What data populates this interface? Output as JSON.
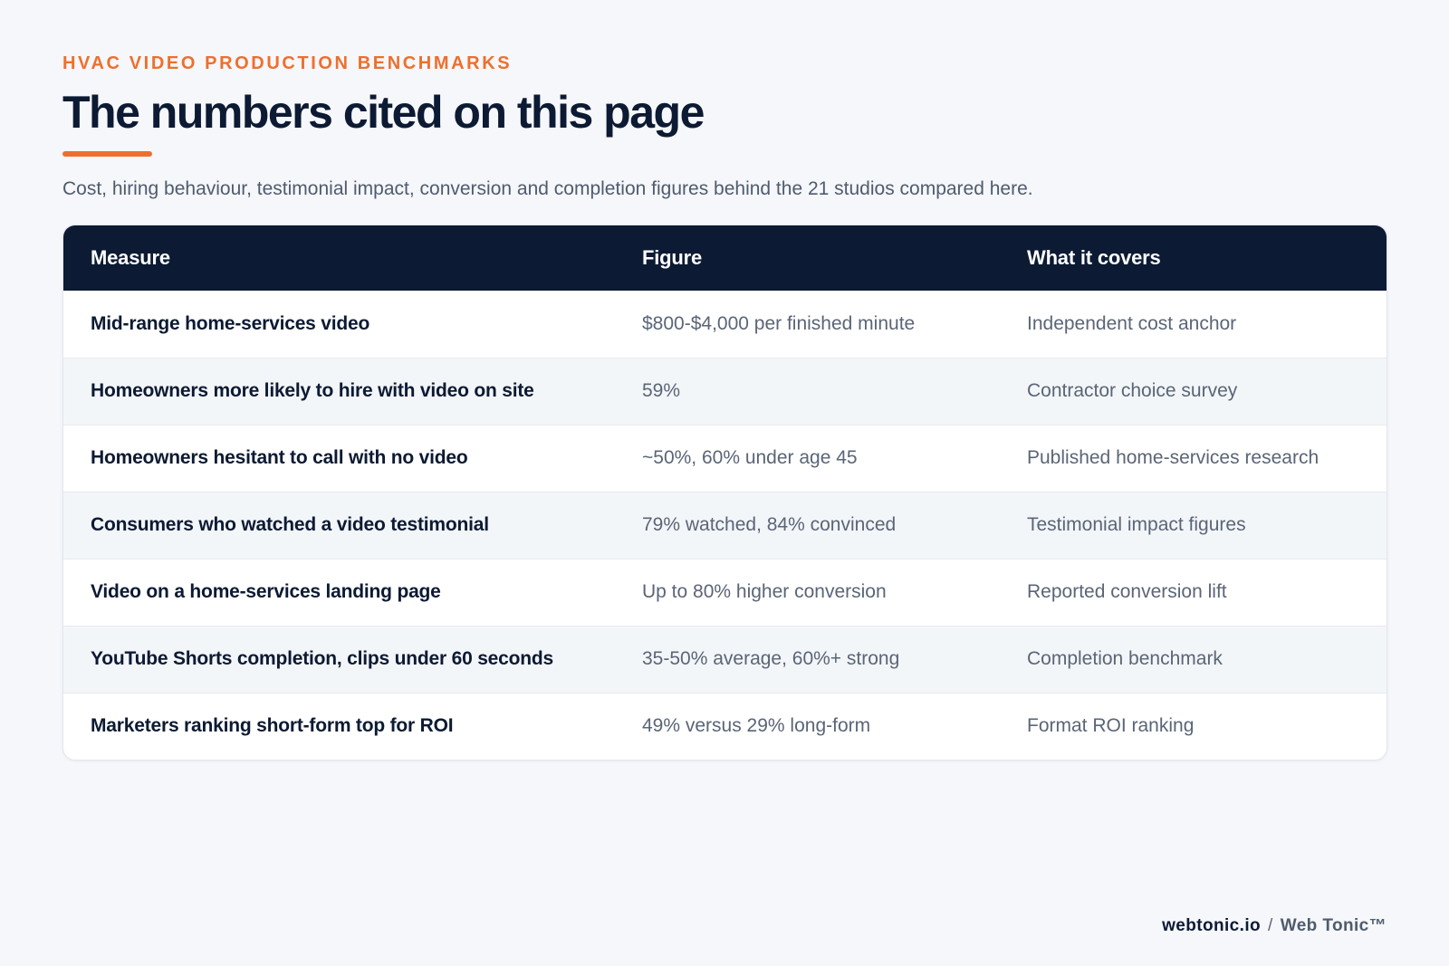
{
  "header": {
    "eyebrow": "HVAC VIDEO PRODUCTION BENCHMARKS",
    "title": "The numbers cited on this page",
    "subtitle": "Cost, hiring behaviour, testimonial impact, conversion and completion figures behind the 21 studios compared here."
  },
  "table": {
    "columns": [
      "Measure",
      "Figure",
      "What it covers"
    ],
    "rows": [
      {
        "measure": "Mid-range home-services video",
        "figure": "$800-$4,000 per finished minute",
        "covers": "Independent cost anchor"
      },
      {
        "measure": "Homeowners more likely to hire with video on site",
        "figure": "59%",
        "covers": "Contractor choice survey"
      },
      {
        "measure": "Homeowners hesitant to call with no video",
        "figure": "~50%, 60% under age 45",
        "covers": "Published home-services research"
      },
      {
        "measure": "Consumers who watched a video testimonial",
        "figure": "79% watched, 84% convinced",
        "covers": "Testimonial impact figures"
      },
      {
        "measure": "Video on a home-services landing page",
        "figure": "Up to 80% higher conversion",
        "covers": "Reported conversion lift"
      },
      {
        "measure": "YouTube Shorts completion, clips under 60 seconds",
        "figure": "35-50% average, 60%+ strong",
        "covers": "Completion benchmark"
      },
      {
        "measure": "Marketers ranking short-form top for ROI",
        "figure": "49% versus 29% long-form",
        "covers": "Format ROI ranking"
      }
    ]
  },
  "footer": {
    "site": "webtonic.io",
    "separator": "/",
    "brand": "Web Tonic™"
  },
  "colors": {
    "accent": "#ee6f2d",
    "navy": "#0c1a33",
    "muted_text": "#5a6577",
    "background": "#f5f7fa",
    "stripe": "#f3f6f9"
  }
}
